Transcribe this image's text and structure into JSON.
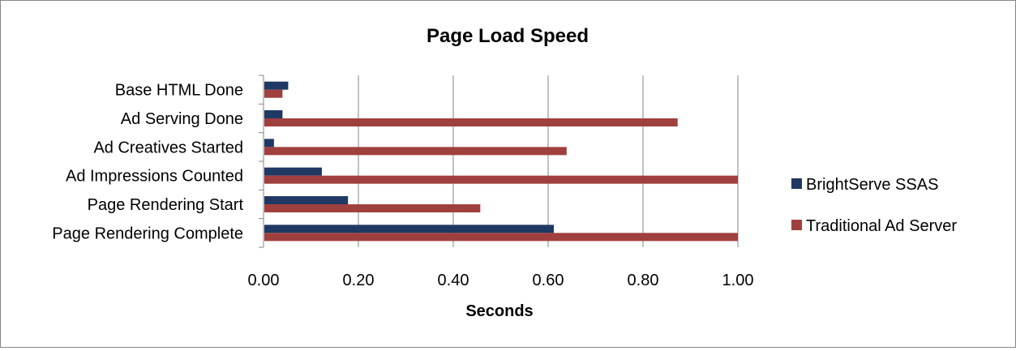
{
  "chart_data": {
    "type": "bar",
    "orientation": "horizontal",
    "title": "Page Load Speed",
    "xlabel": "Seconds",
    "ylabel": "",
    "xlim": [
      0,
      1.0
    ],
    "x_ticks": [
      "0.00",
      "0.20",
      "0.40",
      "0.60",
      "0.80",
      "1.00"
    ],
    "categories": [
      "Page Rendering Complete",
      "Page Rendering Start",
      "Ad Impressions Counted",
      "Ad Creatives Started",
      "Ad Serving Done",
      "Base HTML Done"
    ],
    "series": [
      {
        "name": "BrightServe SSAS",
        "color": "#1F3864",
        "values": [
          0.612,
          0.178,
          0.123,
          0.022,
          0.04,
          0.052
        ]
      },
      {
        "name": "Traditional Ad Server",
        "color": "#A0403E",
        "values": [
          1.0,
          0.457,
          1.0,
          0.639,
          0.873,
          0.04
        ]
      }
    ],
    "legend_position": "right",
    "grid": true
  }
}
